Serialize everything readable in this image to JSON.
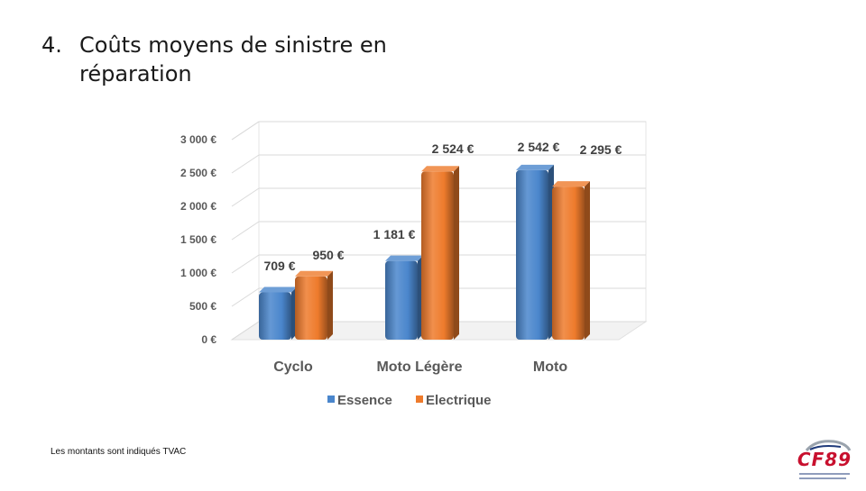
{
  "slide": {
    "number": "4.",
    "title": "Coûts moyens de sinistre en réparation",
    "footnote": "Les montants sont indiqués TVAC",
    "logo_text": "CF89"
  },
  "chart_data": {
    "type": "bar",
    "title": "",
    "xlabel": "",
    "ylabel": "",
    "ylim": [
      0,
      3000
    ],
    "y_ticks": [
      "0 €",
      "500 €",
      "1 000 €",
      "1 500 €",
      "2 000 €",
      "2 500 €",
      "3 000 €"
    ],
    "y_tick_values": [
      0,
      500,
      1000,
      1500,
      2000,
      2500,
      3000
    ],
    "categories": [
      "Cyclo",
      "Moto Légère",
      "Moto"
    ],
    "series": [
      {
        "name": "Essence",
        "values": [
          709,
          1181,
          2542
        ],
        "labels": [
          "709 €",
          "1 181 €",
          "2 542 €"
        ],
        "color": "#4a86cc"
      },
      {
        "name": "Electrique",
        "values": [
          950,
          2524,
          2295
        ],
        "labels": [
          "950 €",
          "2 524 €",
          "2 295 €"
        ],
        "color": "#ee7b2c"
      }
    ],
    "grid": true,
    "legend": "bottom",
    "style": "3d-cylinder"
  }
}
